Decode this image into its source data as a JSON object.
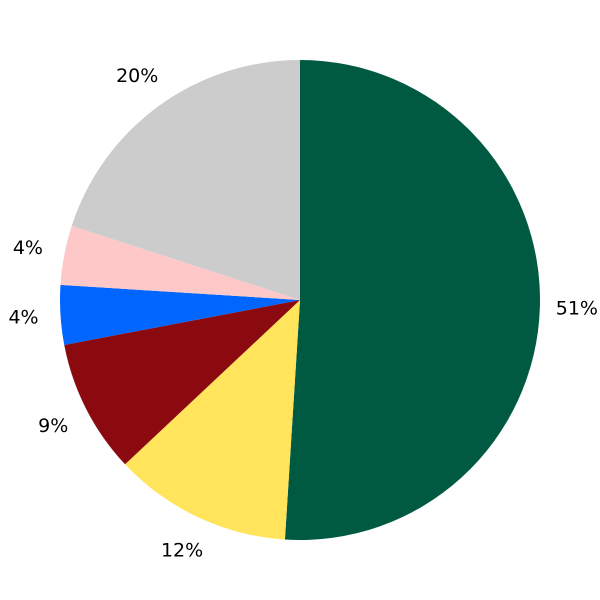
{
  "chart_data": {
    "type": "pie",
    "title": "",
    "start": "top",
    "direction": "clockwise",
    "legend": "none",
    "slices": [
      {
        "value": 51,
        "label": "51%",
        "color": "#005a41"
      },
      {
        "value": 12,
        "label": "12%",
        "color": "#ffe45c"
      },
      {
        "value": 9,
        "label": "9%",
        "color": "#8b0a10"
      },
      {
        "value": 4,
        "label": "4%",
        "color": "#0066ff"
      },
      {
        "value": 4,
        "label": "4%",
        "color": "#ffc8c8"
      },
      {
        "value": 20,
        "label": "20%",
        "color": "#cccccc"
      }
    ]
  }
}
